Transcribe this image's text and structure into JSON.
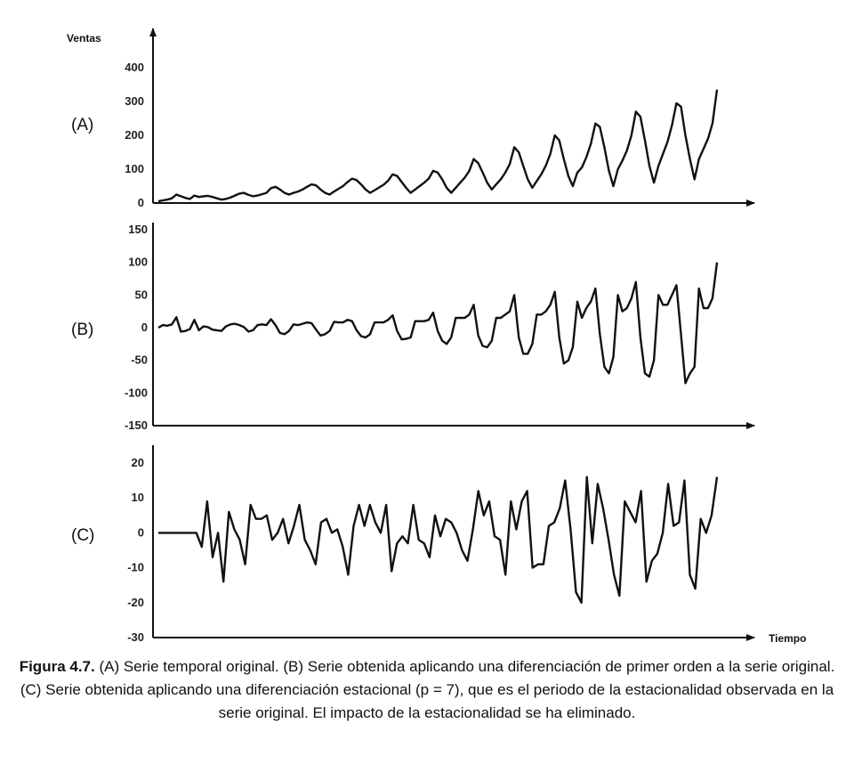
{
  "caption": {
    "figure_number": "Figura 4.7.",
    "text": " (A) Serie temporal original. (B) Serie obtenida aplicando una diferenciación de primer orden a la serie original. (C) Serie obtenida aplicando una diferenciación estacional (p = 7), que es el periodo de la estacionalidad observada en la serie original. El impacto de la estacionalidad se ha eliminado."
  },
  "chart_data": [
    {
      "type": "line",
      "panel_label": "(A)",
      "ylabel": "Ventas",
      "xlabel": "",
      "ylim": [
        0,
        400
      ],
      "yticks": [
        0,
        100,
        200,
        300,
        400
      ],
      "x_range": [
        1,
        98
      ],
      "series": [
        {
          "values": [
            5,
            8,
            10,
            14,
            25,
            20,
            15,
            12,
            22,
            18,
            20,
            21,
            18,
            14,
            10,
            12,
            16,
            22,
            28,
            30,
            24,
            20,
            22,
            26,
            30,
            44,
            48,
            40,
            30,
            25,
            30,
            34,
            40,
            48,
            55,
            52,
            40,
            30,
            25,
            34,
            42,
            50,
            62,
            72,
            68,
            55,
            40,
            30,
            38,
            46,
            54,
            66,
            85,
            80,
            62,
            45,
            30,
            40,
            50,
            60,
            72,
            95,
            90,
            70,
            45,
            30,
            45,
            60,
            75,
            95,
            130,
            118,
            90,
            60,
            40,
            55,
            70,
            90,
            115,
            165,
            150,
            110,
            70,
            45,
            65,
            85,
            110,
            145,
            200,
            185,
            130,
            80,
            50,
            90,
            105,
            135,
            175,
            235,
            225,
            165,
            95,
            50,
            100,
            125,
            155,
            200,
            270,
            255,
            185,
            110,
            60,
            110,
            145,
            180,
            230,
            295,
            285,
            200,
            130,
            70,
            130,
            160,
            190,
            235,
            335
          ]
        }
      ]
    },
    {
      "type": "line",
      "panel_label": "(B)",
      "ylabel": "",
      "xlabel": "",
      "ylim": [
        -150,
        150
      ],
      "yticks": [
        -150,
        -100,
        -50,
        0,
        50,
        100,
        150
      ],
      "x_range": [
        1,
        98
      ],
      "series": [
        {
          "values": [
            0,
            4,
            3,
            5,
            16,
            -6,
            -5,
            -2,
            12,
            -4,
            2,
            1,
            -3,
            -4,
            -5,
            2,
            5,
            6,
            4,
            1,
            -6,
            -4,
            4,
            5,
            4,
            13,
            4,
            -8,
            -10,
            -5,
            5,
            4,
            6,
            8,
            7,
            -3,
            -12,
            -10,
            -5,
            9,
            8,
            8,
            12,
            10,
            -4,
            -13,
            -15,
            -10,
            8,
            8,
            8,
            12,
            19,
            -5,
            -18,
            -17,
            -15,
            10,
            10,
            10,
            12,
            23,
            -5,
            -20,
            -25,
            -15,
            15,
            15,
            15,
            20,
            35,
            -12,
            -28,
            -30,
            -20,
            15,
            15,
            20,
            25,
            50,
            -15,
            -40,
            -40,
            -25,
            20,
            20,
            25,
            35,
            55,
            -15,
            -55,
            -50,
            -30,
            40,
            15,
            30,
            40,
            60,
            -10,
            -60,
            -70,
            -45,
            50,
            25,
            30,
            45,
            70,
            -15,
            -70,
            -75,
            -50,
            50,
            35,
            35,
            50,
            65,
            -10,
            -85,
            -70,
            -60,
            60,
            30,
            30,
            45,
            100
          ]
        }
      ]
    },
    {
      "type": "line",
      "panel_label": "(C)",
      "ylabel": "",
      "xlabel": "Tiempo",
      "ylim": [
        -30,
        20
      ],
      "yticks": [
        -30,
        -20,
        -10,
        0,
        10,
        20
      ],
      "x_range": [
        1,
        98
      ],
      "series": [
        {
          "values": [
            0,
            0,
            0,
            0,
            0,
            0,
            0,
            0,
            -4,
            9,
            -7,
            0,
            -14,
            6,
            1,
            -2,
            -9,
            8,
            4,
            4,
            5,
            -2,
            0,
            4,
            -3,
            2,
            8,
            -2,
            -5,
            -9,
            3,
            4,
            0,
            1,
            -4,
            -12,
            2,
            8,
            2,
            8,
            3,
            0,
            8,
            -11,
            -3,
            -1,
            -3,
            8,
            -2,
            -3,
            -7,
            5,
            -1,
            4,
            3,
            0,
            -5,
            -8,
            1,
            12,
            5,
            9,
            -1,
            -2,
            -12,
            9,
            1,
            9,
            12,
            -10,
            -9,
            -9,
            2,
            3,
            7,
            15,
            1,
            -17,
            -20,
            16,
            -3,
            14,
            7,
            -2,
            -12,
            -18,
            9,
            6,
            3,
            12,
            -14,
            -8,
            -6,
            0,
            14,
            2,
            3,
            15,
            -12,
            -16,
            4,
            0,
            5,
            16
          ]
        }
      ]
    }
  ]
}
